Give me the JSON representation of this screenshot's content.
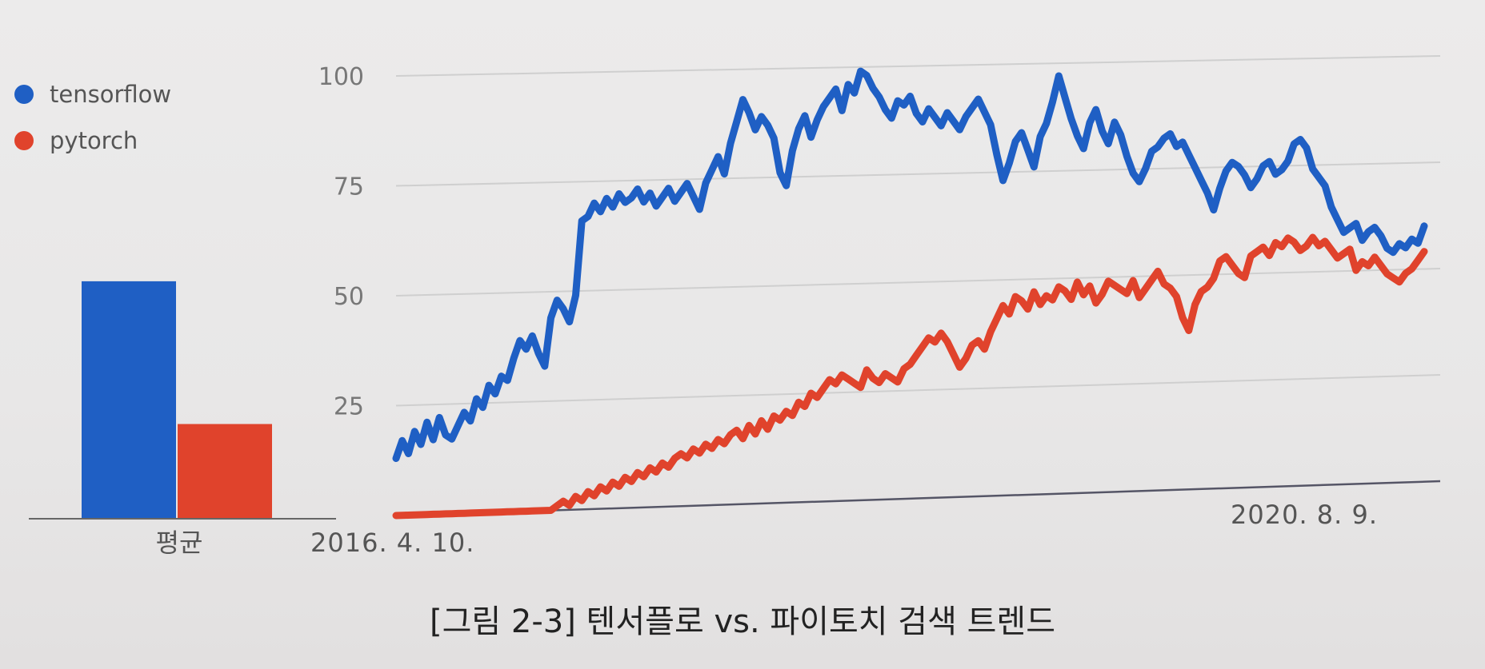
{
  "caption": "[그림 2-3] 텐서플로 vs. 파이토치 검색 트렌드",
  "colors": {
    "tensorflow": "#1f5fc4",
    "pytorch": "#e0432c",
    "grid": "#cfcfcf"
  },
  "chart_data": [
    {
      "type": "bar",
      "categories": [
        "평균"
      ],
      "series": [
        {
          "name": "tensorflow",
          "values": [
            63
          ]
        },
        {
          "name": "pytorch",
          "values": [
            25
          ]
        }
      ],
      "ylim": [
        0,
        100
      ]
    },
    {
      "type": "line",
      "xlabel_start": "2016. 4. 10.",
      "xlabel_end": "2020. 8. 9.",
      "yticks": [
        25,
        50,
        75,
        100
      ],
      "ylim": [
        0,
        100
      ],
      "grid": true,
      "legend": "left",
      "series": [
        {
          "name": "tensorflow",
          "values": [
            13,
            17,
            14,
            19,
            16,
            21,
            17,
            22,
            18,
            17,
            20,
            23,
            21,
            26,
            24,
            29,
            27,
            31,
            30,
            35,
            39,
            37,
            40,
            36,
            33,
            44,
            48,
            46,
            43,
            49,
            66,
            67,
            70,
            68,
            71,
            69,
            72,
            70,
            71,
            73,
            70,
            72,
            69,
            71,
            73,
            70,
            72,
            74,
            71,
            68,
            74,
            77,
            80,
            76,
            83,
            88,
            93,
            90,
            86,
            89,
            87,
            84,
            76,
            73,
            81,
            86,
            89,
            84,
            88,
            91,
            93,
            95,
            90,
            96,
            94,
            99,
            98,
            95,
            93,
            90,
            88,
            92,
            91,
            93,
            89,
            87,
            90,
            88,
            86,
            89,
            87,
            85,
            88,
            90,
            92,
            89,
            86,
            79,
            73,
            77,
            82,
            84,
            80,
            76,
            83,
            86,
            91,
            97,
            92,
            87,
            83,
            80,
            86,
            89,
            84,
            81,
            86,
            83,
            78,
            74,
            72,
            75,
            79,
            80,
            82,
            83,
            80,
            81,
            78,
            75,
            72,
            69,
            65,
            70,
            74,
            76,
            75,
            73,
            70,
            72,
            75,
            76,
            73,
            74,
            76,
            80,
            81,
            79,
            74,
            72,
            70,
            65,
            62,
            59,
            60,
            61,
            57,
            59,
            60,
            58,
            55,
            54,
            56,
            55,
            57,
            56,
            60
          ]
        },
        {
          "name": "pytorch",
          "values": [
            0,
            0,
            0,
            0,
            0,
            0,
            0,
            0,
            0,
            0,
            0,
            0,
            0,
            0,
            0,
            0,
            0,
            0,
            0,
            0,
            0,
            0,
            0,
            0,
            0,
            0,
            1,
            2,
            1,
            3,
            2,
            4,
            3,
            5,
            4,
            6,
            5,
            7,
            6,
            8,
            7,
            9,
            8,
            10,
            9,
            11,
            12,
            11,
            13,
            12,
            14,
            13,
            15,
            14,
            16,
            17,
            15,
            18,
            16,
            19,
            17,
            20,
            19,
            21,
            20,
            23,
            22,
            25,
            24,
            26,
            28,
            27,
            29,
            28,
            27,
            26,
            30,
            28,
            27,
            29,
            28,
            27,
            30,
            31,
            33,
            35,
            37,
            36,
            38,
            36,
            33,
            30,
            32,
            35,
            36,
            34,
            38,
            41,
            44,
            42,
            46,
            45,
            43,
            47,
            44,
            46,
            45,
            48,
            47,
            45,
            49,
            46,
            48,
            44,
            46,
            49,
            48,
            47,
            46,
            49,
            45,
            47,
            49,
            51,
            48,
            47,
            45,
            40,
            37,
            43,
            46,
            47,
            49,
            53,
            54,
            52,
            50,
            49,
            54,
            55,
            56,
            54,
            57,
            56,
            58,
            57,
            55,
            56,
            58,
            56,
            57,
            55,
            53,
            54,
            55,
            50,
            52,
            51,
            53,
            51,
            49,
            48,
            47,
            49,
            50,
            52,
            54
          ]
        }
      ]
    }
  ]
}
